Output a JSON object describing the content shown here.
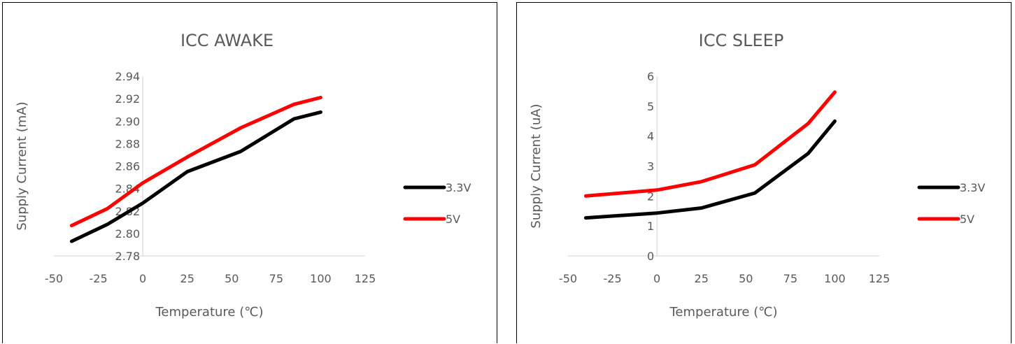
{
  "chart_data": [
    {
      "type": "line",
      "title": "ICC AWAKE",
      "xlabel": "Temperature (℃)",
      "ylabel": "Supply Current (mA)",
      "xlim": [
        -50,
        125
      ],
      "ylim": [
        2.78,
        2.94
      ],
      "x_ticks": [
        "-50",
        "-25",
        "0",
        "25",
        "50",
        "75",
        "100",
        "125"
      ],
      "y_ticks": [
        "2.78",
        "2.80",
        "2.82",
        "2.84",
        "2.86",
        "2.88",
        "2.90",
        "2.92",
        "2.94"
      ],
      "grid": false,
      "legend": "right",
      "series": [
        {
          "name": "3.3V",
          "color": "#000000",
          "x": [
            -40,
            -20,
            0,
            25,
            55,
            85,
            100
          ],
          "y": [
            2.793,
            2.808,
            2.827,
            2.855,
            2.873,
            2.902,
            2.908
          ]
        },
        {
          "name": "5V",
          "color": "#ff0000",
          "x": [
            -40,
            -20,
            0,
            25,
            55,
            85,
            100
          ],
          "y": [
            2.807,
            2.822,
            2.845,
            2.868,
            2.894,
            2.915,
            2.921
          ]
        }
      ]
    },
    {
      "type": "line",
      "title": "ICC SLEEP",
      "xlabel": "Temperature (℃)",
      "ylabel": "Supply Current (uA)",
      "xlim": [
        -50,
        125
      ],
      "ylim": [
        0,
        6
      ],
      "x_ticks": [
        "-50",
        "-25",
        "0",
        "25",
        "50",
        "75",
        "100",
        "125"
      ],
      "y_ticks": [
        "0",
        "1",
        "2",
        "3",
        "4",
        "5",
        "6"
      ],
      "grid": false,
      "legend": "right",
      "series": [
        {
          "name": "3.3V",
          "color": "#000000",
          "x": [
            -40,
            0,
            25,
            55,
            85,
            100
          ],
          "y": [
            1.27,
            1.43,
            1.6,
            2.1,
            3.42,
            4.5
          ]
        },
        {
          "name": "5V",
          "color": "#ff0000",
          "x": [
            -40,
            0,
            25,
            55,
            85,
            100
          ],
          "y": [
            2.0,
            2.2,
            2.48,
            3.04,
            4.42,
            5.47
          ]
        }
      ]
    }
  ]
}
